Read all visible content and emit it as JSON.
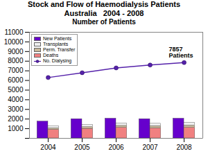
{
  "chart_data": {
    "type": "bar",
    "title": "Stock and Flow of Haemodialysis Patients\nAustralia   2004 - 2008",
    "subtitle": "Number of Patients",
    "categories": [
      "2004",
      "2005",
      "2006",
      "2007",
      "2008"
    ],
    "series": [
      {
        "name": "New Patients",
        "color": "#6600cc",
        "values": [
          1750,
          2000,
          2050,
          2000,
          2050
        ]
      },
      {
        "stacked": true,
        "series": [
          {
            "name": "Deaths",
            "color": "#f08080",
            "values": [
              900,
              1000,
              1100,
              1050,
              1100
            ]
          },
          {
            "name": "Perm. Transfer",
            "color": "#c8b89a",
            "values": [
              150,
              170,
              200,
              220,
              230
            ]
          },
          {
            "name": "Transplants",
            "color": "#f0f0f0",
            "values": [
              200,
              220,
              250,
              250,
              300
            ]
          }
        ]
      },
      {
        "name": "No. Dialysing",
        "type": "line",
        "marker": "circle",
        "color": "#5522aa",
        "values": [
          6300,
          6800,
          7300,
          7600,
          7857
        ]
      }
    ],
    "ylim": [
      0,
      11000
    ],
    "yticks": [
      {
        "value": 0,
        "label": ""
      },
      1000,
      2000,
      3000,
      4000,
      5000,
      6000,
      7000,
      8000,
      9000,
      10000,
      11000
    ],
    "grid": false,
    "legend": "upper left",
    "annotations": [
      {
        "text": "7857\nPatients"
      }
    ]
  }
}
